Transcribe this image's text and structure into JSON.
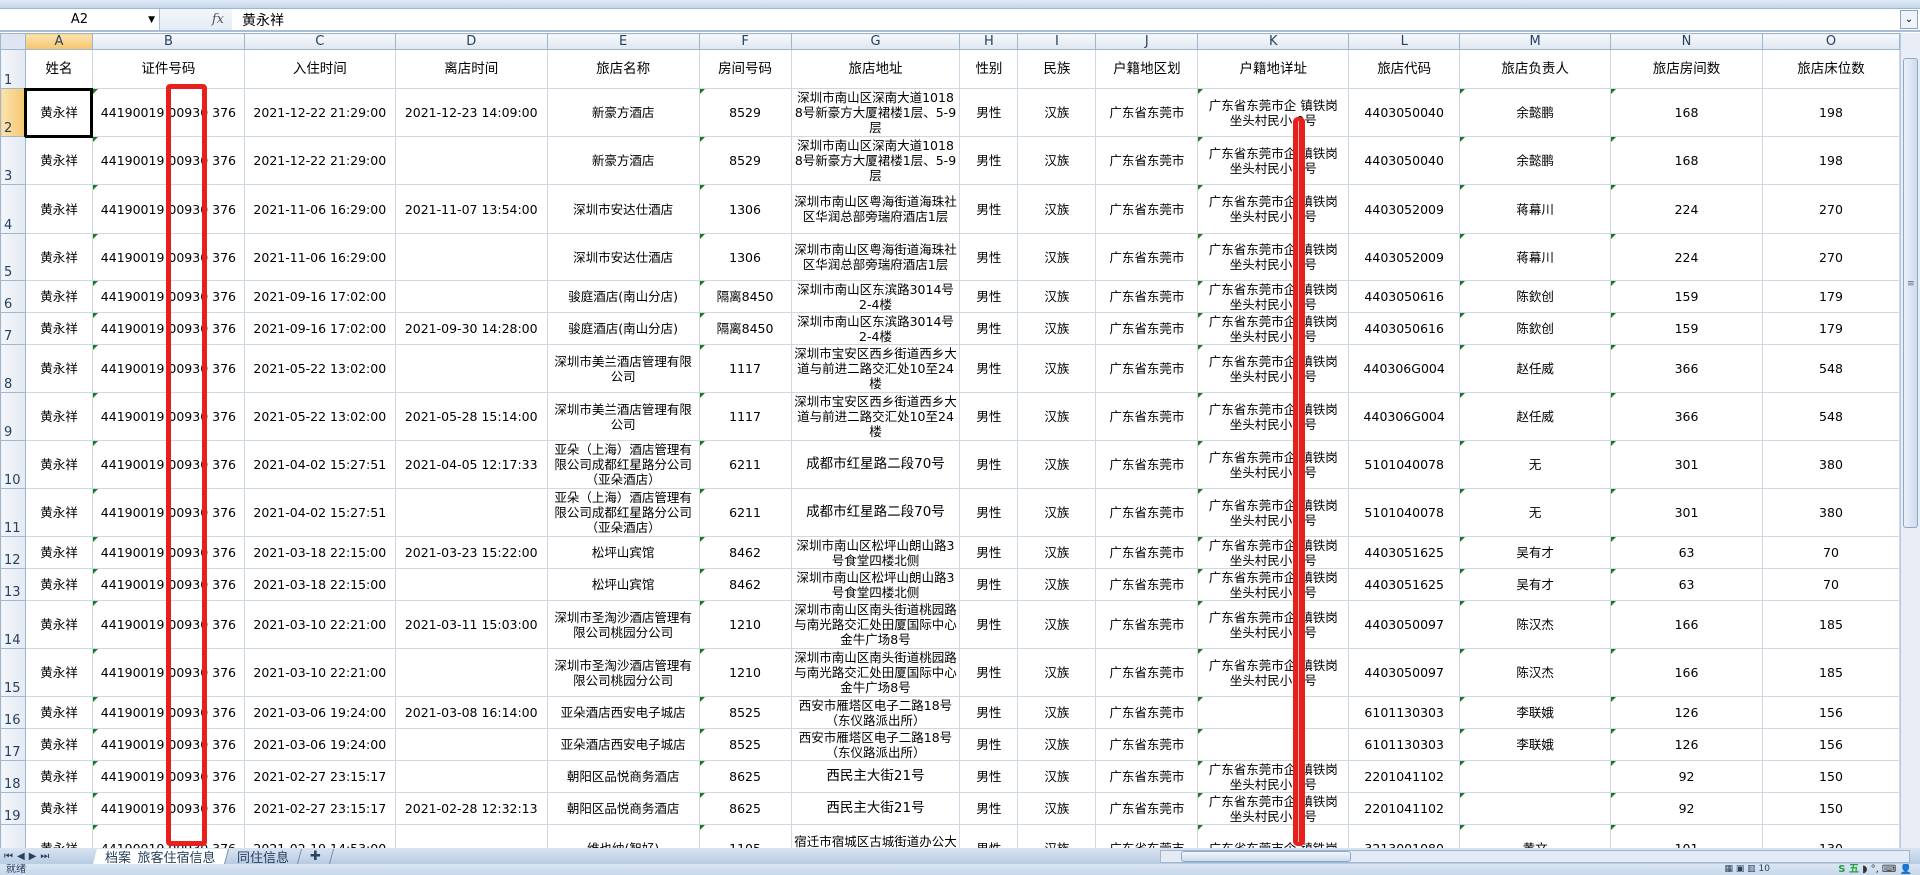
{
  "formula_bar": {
    "name_box": "A2",
    "fx_label": "fx",
    "value": "黄永祥"
  },
  "columns": [
    "A",
    "B",
    "C",
    "D",
    "E",
    "F",
    "G",
    "H",
    "I",
    "J",
    "K",
    "L",
    "M",
    "N",
    "O"
  ],
  "selected_cell": "A2",
  "header_row": [
    "姓名",
    "证件号码",
    "入住时间",
    "离店时间",
    "旅店名称",
    "房间号码",
    "旅店地址",
    "性别",
    "民族",
    "户籍地区划",
    "户籍地详址",
    "旅店代码",
    "旅店负责人",
    "旅店房间数",
    "旅店床位数"
  ],
  "rows": [
    [
      "黄永祥",
      "44190019 00930 376",
      "2021-12-22 21:29:00",
      "2021-12-23 14:09:00",
      "新豪方酒店",
      "8529",
      "深圳市南山区深南大道10188号新豪方大厦裙楼1层、5-9层",
      "男性",
      "汉族",
      "广东省东莞市",
      "广东省东莞市企 镇铁岗\n坐头村民小 0号",
      "4403050040",
      "余懿鹏",
      "168",
      "198"
    ],
    [
      "黄永祥",
      "44190019 00930 376",
      "2021-12-22 21:29:00",
      "",
      "新豪方酒店",
      "8529",
      "深圳市南山区深南大道10188号新豪方大厦裙楼1层、5-9层",
      "男性",
      "汉族",
      "广东省东莞市",
      "广东省东莞市企 镇铁岗\n坐头村民小 0号",
      "4403050040",
      "余懿鹏",
      "168",
      "198"
    ],
    [
      "黄永祥",
      "44190019 00930 376",
      "2021-11-06 16:29:00",
      "2021-11-07 13:54:00",
      "深圳市安达仕酒店",
      "1306",
      "深圳市南山区粤海街道海珠社区华润总部旁瑞府酒店1层",
      "男性",
      "汉族",
      "广东省东莞市",
      "广东省东莞市企 镇铁岗\n坐头村民小 0号",
      "4403052009",
      "蒋幕川",
      "224",
      "270"
    ],
    [
      "黄永祥",
      "44190019 00930 376",
      "2021-11-06 16:29:00",
      "",
      "深圳市安达仕酒店",
      "1306",
      "深圳市南山区粤海街道海珠社区华润总部旁瑞府酒店1层",
      "男性",
      "汉族",
      "广东省东莞市",
      "广东省东莞市企 镇铁岗\n坐头村民小 0号",
      "4403052009",
      "蒋幕川",
      "224",
      "270"
    ],
    [
      "黄永祥",
      "44190019 00930 376",
      "2021-09-16 17:02:00",
      "",
      "骏庭酒店(南山分店)",
      "隔离8450",
      "深圳市南山区东滨路3014号2-4楼",
      "男性",
      "汉族",
      "广东省东莞市",
      "广东省东莞市企 镇铁岗\n坐头村民小 0号",
      "4403050616",
      "陈欽创",
      "159",
      "179"
    ],
    [
      "黄永祥",
      "44190019 00930 376",
      "2021-09-16 17:02:00",
      "2021-09-30 14:28:00",
      "骏庭酒店(南山分店)",
      "隔离8450",
      "深圳市南山区东滨路3014号2-4楼",
      "男性",
      "汉族",
      "广东省东莞市",
      "广东省东莞市企 镇铁岗\n坐头村民小 0号",
      "4403050616",
      "陈欽创",
      "159",
      "179"
    ],
    [
      "黄永祥",
      "44190019 00930 376",
      "2021-05-22 13:02:00",
      "",
      "深圳市美兰酒店管理有限公司",
      "1117",
      "深圳市宝安区西乡街道西乡大道与前进二路交汇处10至24楼",
      "男性",
      "汉族",
      "广东省东莞市",
      "广东省东莞市企 镇铁岗\n坐头村民小 0号",
      "440306G004",
      "赵任威",
      "366",
      "548"
    ],
    [
      "黄永祥",
      "44190019 00930 376",
      "2021-05-22 13:02:00",
      "2021-05-28 15:14:00",
      "深圳市美兰酒店管理有限公司",
      "1117",
      "深圳市宝安区西乡街道西乡大道与前进二路交汇处10至24楼",
      "男性",
      "汉族",
      "广东省东莞市",
      "广东省东莞市企 镇铁岗\n坐头村民小 0号",
      "440306G004",
      "赵任威",
      "366",
      "548"
    ],
    [
      "黄永祥",
      "44190019 00930 376",
      "2021-04-02 15:27:51",
      "2021-04-05 12:17:33",
      "亚朵（上海）酒店管理有限公司成都红星路分公司（亚朵酒店）",
      "6211",
      "成都市红星路二段70号",
      "男性",
      "汉族",
      "广东省东莞市",
      "广东省东莞市企 镇铁岗\n坐头村民小 0号",
      "5101040078",
      "无",
      "301",
      "380"
    ],
    [
      "黄永祥",
      "44190019 00930 376",
      "2021-04-02 15:27:51",
      "",
      "亚朵（上海）酒店管理有限公司成都红星路分公司（亚朵酒店）",
      "6211",
      "成都市红星路二段70号",
      "男性",
      "汉族",
      "广东省东莞市",
      "广东省东莞市企 镇铁岗\n坐头村民小 0号",
      "5101040078",
      "无",
      "301",
      "380"
    ],
    [
      "黄永祥",
      "44190019 00930 376",
      "2021-03-18 22:15:00",
      "2021-03-23 15:22:00",
      "松坪山宾馆",
      "8462",
      "深圳市南山区松坪山朗山路3号食堂四楼北侧",
      "男性",
      "汉族",
      "广东省东莞市",
      "广东省东莞市企 镇铁岗\n坐头村民小 0号",
      "4403051625",
      "吴有才",
      "63",
      "70"
    ],
    [
      "黄永祥",
      "44190019 00930 376",
      "2021-03-18 22:15:00",
      "",
      "松坪山宾馆",
      "8462",
      "深圳市南山区松坪山朗山路3号食堂四楼北侧",
      "男性",
      "汉族",
      "广东省东莞市",
      "广东省东莞市企 镇铁岗\n坐头村民小 0号",
      "4403051625",
      "吴有才",
      "63",
      "70"
    ],
    [
      "黄永祥",
      "44190019 00930 376",
      "2021-03-10 22:21:00",
      "2021-03-11 15:03:00",
      "深圳市圣淘沙酒店管理有限公司桃园分公司",
      "1210",
      "深圳市南山区南头街道桃园路与南光路交汇处田厦国际中心金牛广场8号",
      "男性",
      "汉族",
      "广东省东莞市",
      "广东省东莞市企 镇铁岗\n坐头村民小 0号",
      "4403050097",
      "陈汉杰",
      "166",
      "185"
    ],
    [
      "黄永祥",
      "44190019 00930 376",
      "2021-03-10 22:21:00",
      "",
      "深圳市圣淘沙酒店管理有限公司桃园分公司",
      "1210",
      "深圳市南山区南头街道桃园路与南光路交汇处田厦国际中心金牛广场8号",
      "男性",
      "汉族",
      "广东省东莞市",
      "广东省东莞市企 镇铁岗\n坐头村民小 0号",
      "4403050097",
      "陈汉杰",
      "166",
      "185"
    ],
    [
      "黄永祥",
      "44190019 00930 376",
      "2021-03-06 19:24:00",
      "2021-03-08 16:14:00",
      "亚朵酒店西安电子城店",
      "8525",
      "西安市雁塔区电子二路18号（东仪路派出所）",
      "男性",
      "汉族",
      "广东省东莞市",
      "",
      "6101130303",
      "李联娥",
      "126",
      "156"
    ],
    [
      "黄永祥",
      "44190019 00930 376",
      "2021-03-06 19:24:00",
      "",
      "亚朵酒店西安电子城店",
      "8525",
      "西安市雁塔区电子二路18号（东仪路派出所）",
      "男性",
      "汉族",
      "广东省东莞市",
      "",
      "6101130303",
      "李联娥",
      "126",
      "156"
    ],
    [
      "黄永祥",
      "44190019 00930 376",
      "2021-02-27 23:15:17",
      "",
      "朝阳区品悦商务酒店",
      "8625",
      "西民主大街21号",
      "男性",
      "汉族",
      "广东省东莞市",
      "广东省东莞市企 镇铁岗\n坐头村民小 0号",
      "2201041102",
      "",
      "92",
      "150"
    ],
    [
      "黄永祥",
      "44190019 00930 376",
      "2021-02-27 23:15:17",
      "2021-02-28 12:32:13",
      "朝阳区品悦商务酒店",
      "8625",
      "西民主大街21号",
      "男性",
      "汉族",
      "广东省东莞市",
      "广东省东莞市企 镇铁岗\n坐头村民小 0号",
      "2201041102",
      "",
      "92",
      "150"
    ],
    [
      "黄永祥",
      "44190019 00930 376",
      "2021-02-19 14:53:00",
      "",
      "维也纳(智好)",
      "1105",
      "宿迁市宿城区古城街道办公大楼（地上北一层、地",
      "男性",
      "汉族",
      "广东省东莞市",
      "广东省东莞市企 镇铁岗",
      "3213001080",
      "黄文",
      "101",
      "130"
    ]
  ],
  "sheet_tabs": [
    {
      "label": "档案_旅客住宿信息",
      "active": true
    },
    {
      "label": "同住信息",
      "active": false
    }
  ],
  "status": {
    "ready": "就绪",
    "zoom": "10",
    "ime_label": "S 五"
  }
}
